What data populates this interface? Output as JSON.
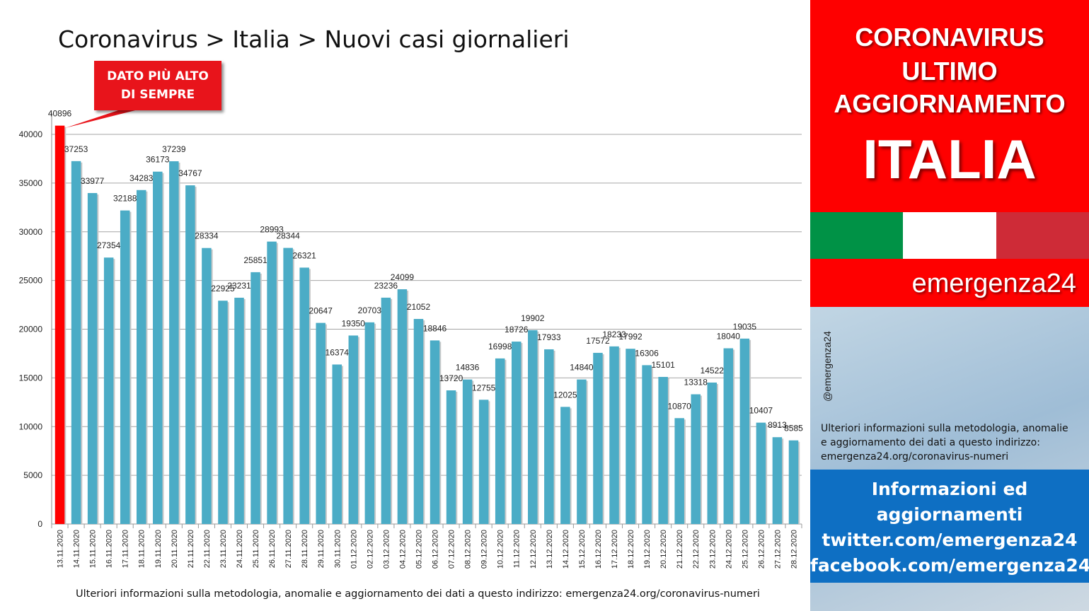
{
  "title": "Coronavirus > Italia > Nuovi casi giornalieri",
  "callout": {
    "line1": "DATO PIÙ ALTO",
    "line2": "DI SEMPRE"
  },
  "footnote": "Ulteriori informazioni sulla metodologia, anomalie e aggiornamento dei dati a questo indirizzo: emergenza24.org/coronavirus-numeri",
  "sidebar": {
    "header_lines": [
      "CORONAVIRUS",
      "ULTIMO",
      "AGGIORNAMENTO"
    ],
    "country": "ITALIA",
    "flag_colors": [
      "#009246",
      "#ffffff",
      "#ce2b37"
    ],
    "brand": "emergenza24",
    "handle": "@emergenza24",
    "info_lines": [
      "Ulteriori informazioni sulla metodologia, anomalie",
      "e aggiornamento dei dati a questo indirizzo:",
      "emergenza24.org/coronavirus-numeri"
    ],
    "social_lines": [
      "Informazioni ed",
      "aggiornamenti",
      "twitter.com/emergenza24",
      "facebook.com/emergenza24"
    ]
  },
  "colors": {
    "bar": "#4bacc6",
    "highlight": "#ff0000",
    "accent_red": "#fe0000",
    "accent_blue": "#0e6fc3"
  },
  "chart_data": {
    "type": "bar",
    "categories": [
      "13.11.2020",
      "14.11.2020",
      "15.11.2020",
      "16.11.2020",
      "17.11.2020",
      "18.11.2020",
      "19.11.2020",
      "20.11.2020",
      "21.11.2020",
      "22.11.2020",
      "23.11.2020",
      "24.11.2020",
      "25.11.2020",
      "26.11.2020",
      "27.11.2020",
      "28.11.2020",
      "29.11.2020",
      "30.11.2020",
      "01.12.2020",
      "02.12.2020",
      "03.12.2020",
      "04.12.2020",
      "05.12.2020",
      "06.12.2020",
      "07.12.2020",
      "08.12.2020",
      "09.12.2020",
      "10.12.2020",
      "11.12.2020",
      "12.12.2020",
      "13.12.2020",
      "14.12.2020",
      "15.12.2020",
      "16.12.2020",
      "17.12.2020",
      "18.12.2020",
      "19.12.2020",
      "20.12.2020",
      "21.12.2020",
      "22.12.2020",
      "23.12.2020",
      "24.12.2020",
      "25.12.2020",
      "26.12.2020",
      "27.12.2020",
      "28.12.2020"
    ],
    "values": [
      40896,
      37253,
      33977,
      27354,
      32188,
      34283,
      36173,
      37239,
      34767,
      28334,
      22925,
      23231,
      25851,
      28993,
      28344,
      26321,
      20647,
      16374,
      19350,
      20703,
      23236,
      24099,
      21052,
      18846,
      13720,
      14836,
      12755,
      16998,
      18726,
      19902,
      17933,
      12025,
      14840,
      17572,
      18233,
      17992,
      16306,
      15101,
      10870,
      13318,
      14522,
      18040,
      19035,
      10407,
      8913,
      8585
    ],
    "highlight_index": 0,
    "ylim": [
      0,
      40000
    ],
    "yticks": [
      0,
      5000,
      10000,
      15000,
      20000,
      25000,
      30000,
      35000,
      40000
    ],
    "grid": true,
    "legend": "none"
  }
}
